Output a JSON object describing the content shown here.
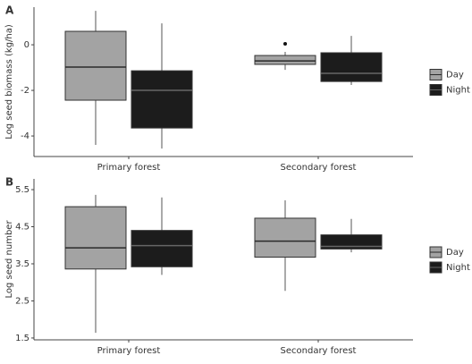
{
  "chart_data": [
    {
      "type": "box",
      "label": "A",
      "ylabel": "Log seed biomass (kg/ha)",
      "categories": [
        "Primary forest",
        "Secondary forest"
      ],
      "ylim": [
        -4.9,
        1.65
      ],
      "yticks": [
        -4,
        -2,
        0
      ],
      "series": [
        {
          "name": "Day",
          "color": "#a3a3a3",
          "values": [
            {
              "min": -4.39,
              "q1": -2.43,
              "median": -0.98,
              "q3": 0.59,
              "max": 1.49
            },
            {
              "min": -1.1,
              "q1": -0.86,
              "median": -0.71,
              "q3": -0.47,
              "max": -0.31
            }
          ],
          "outliers": [
            [],
            [
              0.04
            ]
          ]
        },
        {
          "name": "Night",
          "color": "#1c1c1c",
          "values": [
            {
              "min": -4.55,
              "q1": -3.65,
              "median": -2.0,
              "q3": -1.14,
              "max": 0.94
            },
            {
              "min": -1.76,
              "q1": -1.61,
              "median": -1.25,
              "q3": -0.35,
              "max": 0.39
            }
          ],
          "outliers": [
            [],
            []
          ]
        }
      ]
    },
    {
      "type": "box",
      "label": "B",
      "ylabel": "Log seed number",
      "categories": [
        "Primary forest",
        "Secondary forest"
      ],
      "ylim": [
        1.45,
        5.79
      ],
      "yticks": [
        1.5,
        2.5,
        3.5,
        4.5,
        5.5
      ],
      "series": [
        {
          "name": "Day",
          "color": "#a3a3a3",
          "values": [
            {
              "min": 1.64,
              "q1": 3.36,
              "median": 3.93,
              "q3": 5.04,
              "max": 5.36
            },
            {
              "min": 2.77,
              "q1": 3.68,
              "median": 4.11,
              "q3": 4.73,
              "max": 5.21
            }
          ],
          "outliers": [
            [],
            []
          ]
        },
        {
          "name": "Night",
          "color": "#1c1c1c",
          "values": [
            {
              "min": 3.2,
              "q1": 3.42,
              "median": 3.99,
              "q3": 4.4,
              "max": 5.29
            },
            {
              "min": 3.81,
              "q1": 3.9,
              "median": 3.97,
              "q3": 4.28,
              "max": 4.71
            }
          ],
          "outliers": [
            [],
            []
          ]
        }
      ]
    }
  ]
}
